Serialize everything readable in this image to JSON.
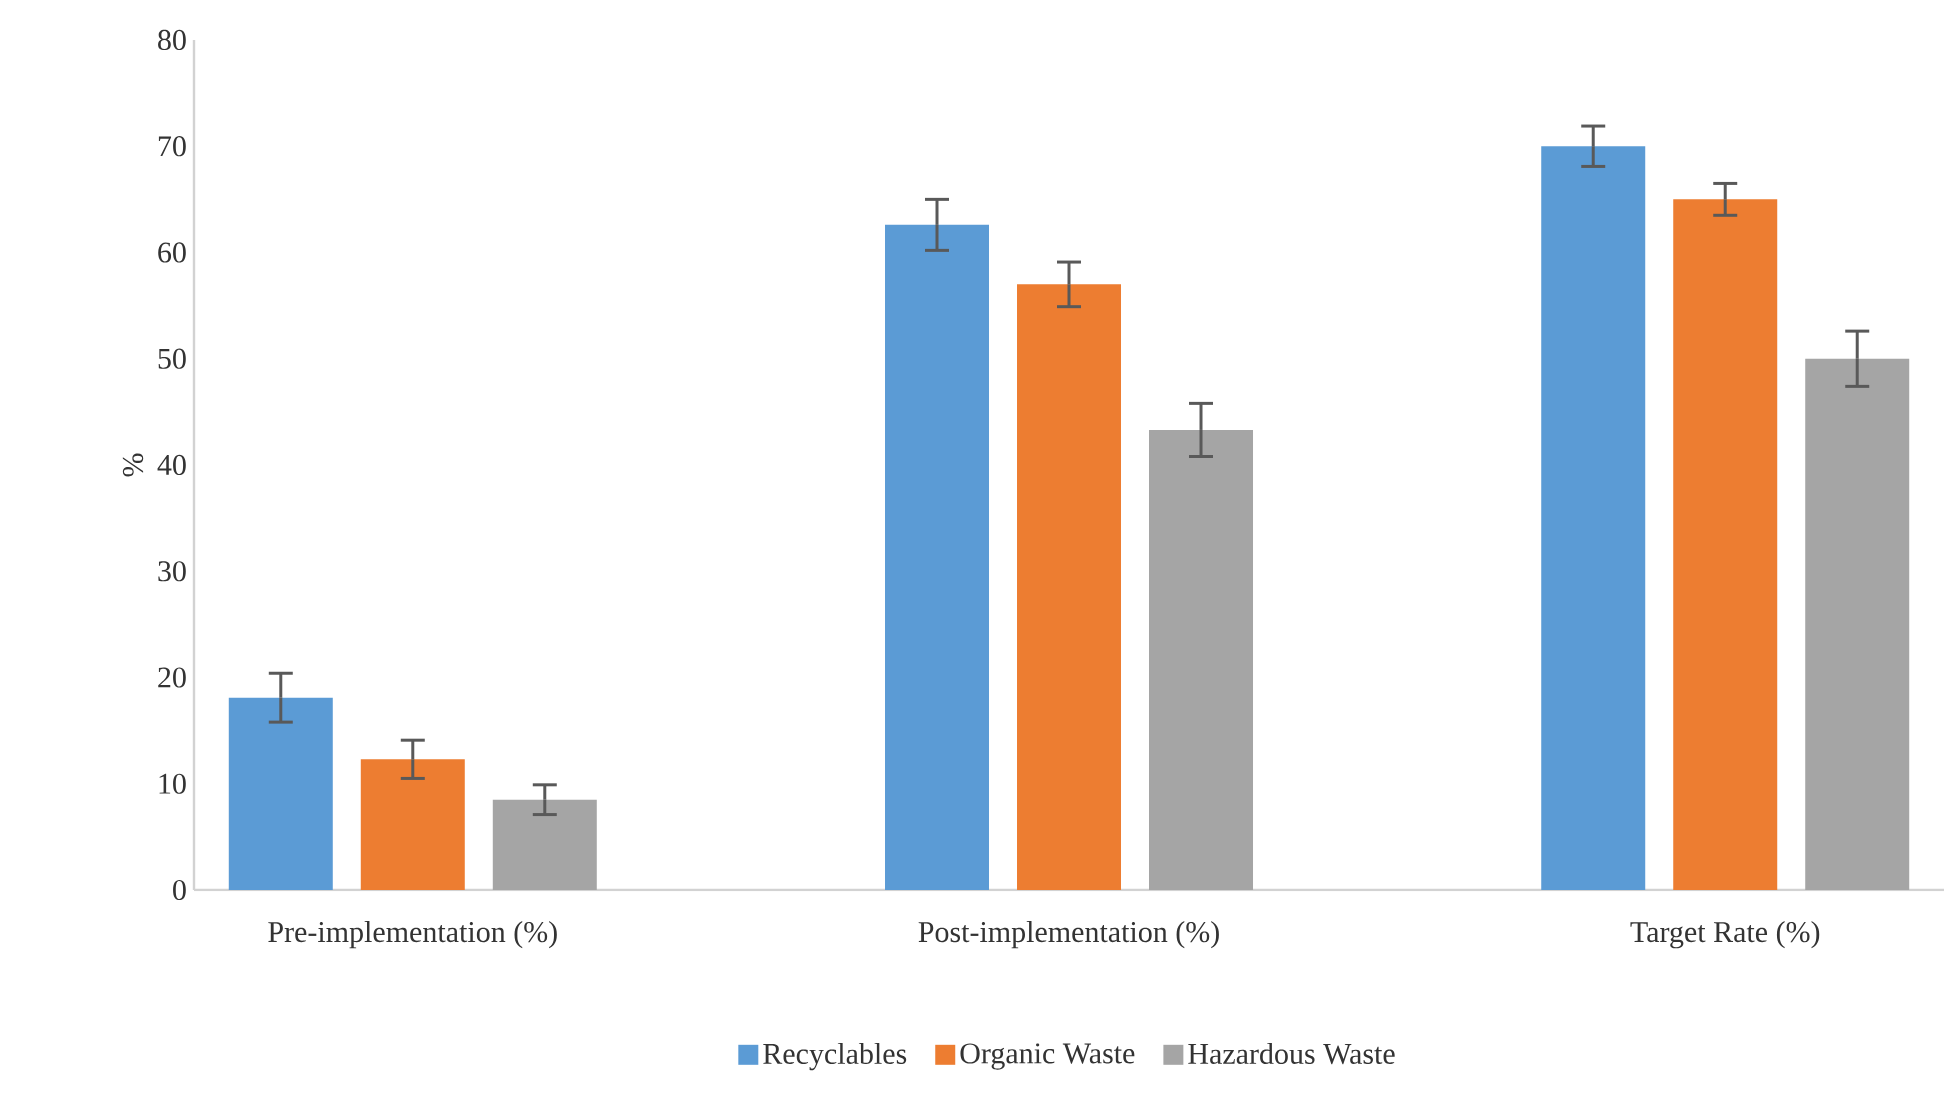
{
  "chart_data": {
    "type": "bar",
    "ylabel": "%",
    "categories": [
      "Pre-implementation (%)",
      "Post-implementation (%)",
      "Target Rate (%)"
    ],
    "series": [
      {
        "name": "Recyclables",
        "color": "#5b9bd5",
        "values": [
          18.1,
          62.6,
          70
        ],
        "errors": [
          2.3,
          2.4,
          1.9
        ]
      },
      {
        "name": "Organic Waste",
        "color": "#ed7d31",
        "values": [
          12.3,
          57.0,
          65
        ],
        "errors": [
          1.8,
          2.1,
          1.5
        ]
      },
      {
        "name": "Hazardous Waste",
        "color": "#a5a5a5",
        "values": [
          8.5,
          43.3,
          50
        ],
        "errors": [
          1.4,
          2.5,
          2.6
        ]
      }
    ],
    "ylim": [
      0,
      80
    ],
    "yticks": [
      0,
      10,
      20,
      30,
      40,
      50,
      60,
      70,
      80
    ],
    "grid": false,
    "legend": "bottom"
  }
}
